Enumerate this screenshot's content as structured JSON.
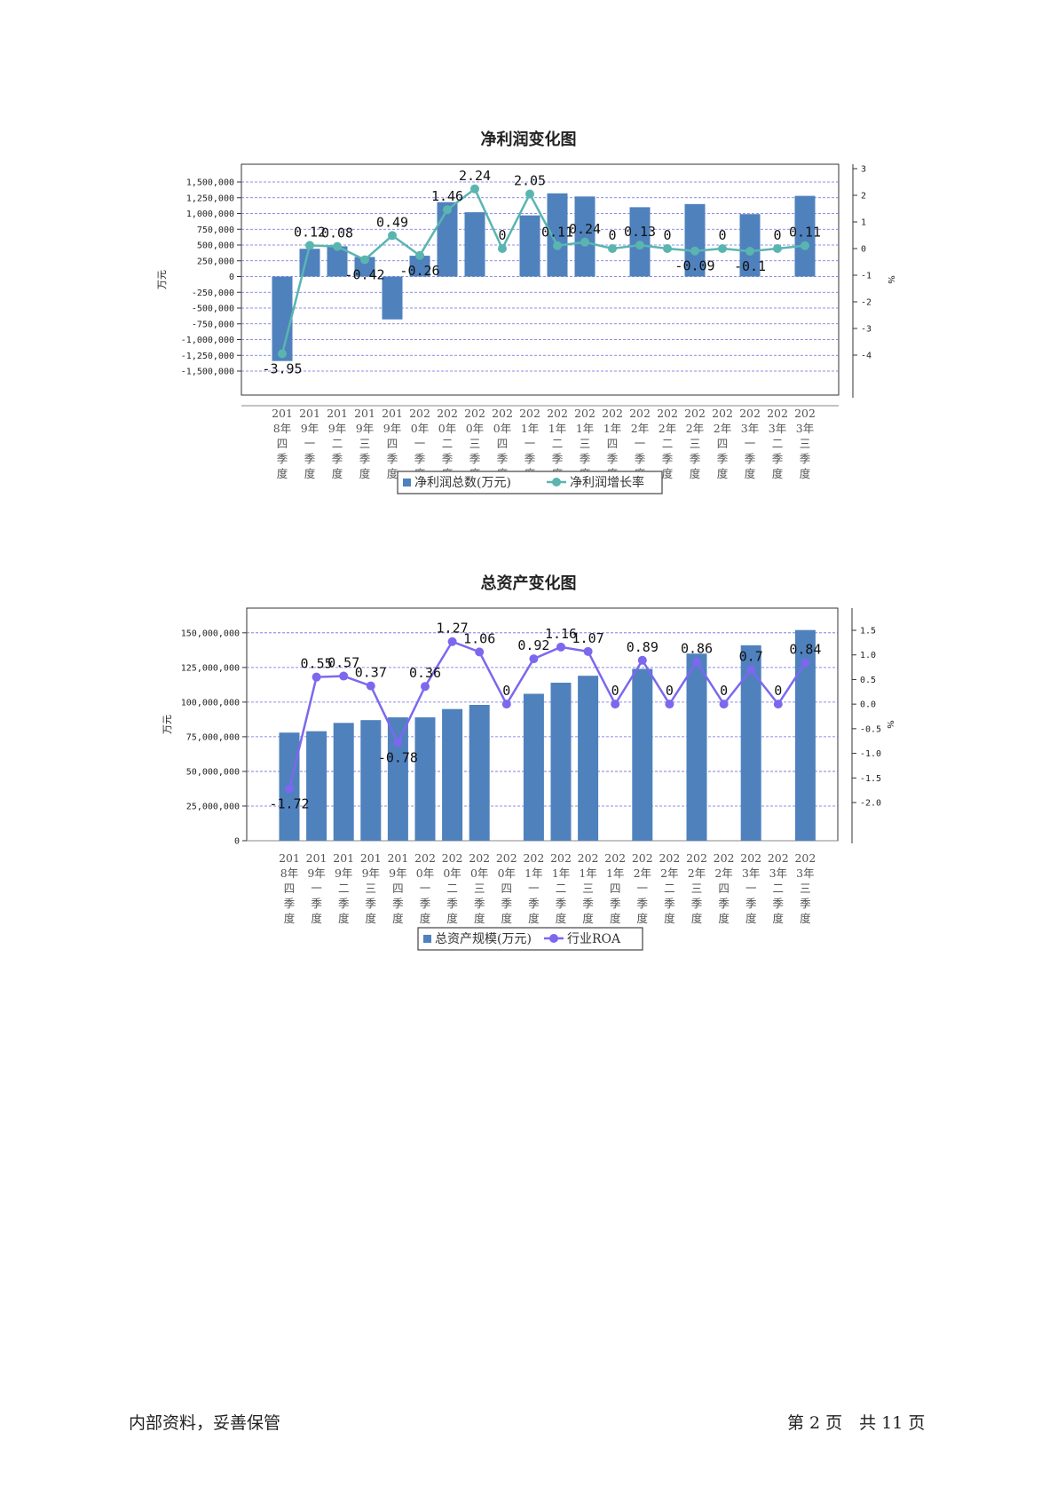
{
  "charts": [
    {
      "id": "netprofit",
      "title": "净利润变化图",
      "left_axis_unit": "万元",
      "right_axis_unit": "%",
      "bar_color": "#4f81bd",
      "line_color": "#5ab5b0",
      "left_ticks": [
        "1,500,000",
        "1,250,000",
        "1,000,000",
        "750,000",
        "500,000",
        "250,000",
        "0",
        "-250,000",
        "-500,000",
        "-750,000",
        "-1,000,000",
        "-1,250,000",
        "-1,500,000"
      ],
      "right_ticks": [
        "3",
        "2",
        "1",
        "0",
        "-1",
        "-2",
        "-3",
        "-4"
      ],
      "legend": {
        "bar": "净利润总数(万元)",
        "line": "净利润增长率"
      },
      "data_labels": [
        "-3.95",
        "0.12",
        "0.08",
        "-0.42",
        "0.49",
        "-0.26",
        "1.46",
        "2.24",
        "0",
        "2.05",
        "0.11",
        "0.24",
        "0",
        "0.13",
        "0",
        "-0.09",
        "0",
        "-0.1",
        "0",
        "0.11"
      ]
    },
    {
      "id": "assets",
      "title": "总资产变化图",
      "left_axis_unit": "万元",
      "right_axis_unit": "%",
      "bar_color": "#4f81bd",
      "line_color": "#7b68ee",
      "left_ticks": [
        "150,000,000",
        "125,000,000",
        "100,000,000",
        "75,000,000",
        "50,000,000",
        "25,000,000",
        "0"
      ],
      "right_ticks": [
        "1.5",
        "1.0",
        "0.5",
        "0.0",
        "-0.5",
        "-1.0",
        "-1.5",
        "-2.0"
      ],
      "legend": {
        "bar": "总资产规模(万元)",
        "line": "行业ROA"
      },
      "data_labels": [
        "-1.72",
        "0.55",
        "0.57",
        "0.37",
        "-0.78",
        "0.36",
        "1.27",
        "1.06",
        "0",
        "0.92",
        "1.16",
        "1.07",
        "0",
        "0.89",
        "0",
        "0.86",
        "0",
        "0.7",
        "0",
        "0.84"
      ]
    }
  ],
  "chart_data": [
    {
      "type": "bar",
      "title": "净利润变化图",
      "categories": [
        "2018年四季度",
        "2019年一季度",
        "2019年二季度",
        "2019年三季度",
        "2019年四季度",
        "2020年一季度",
        "2020年二季度",
        "2020年三季度",
        "2020年四季度",
        "2021年一季度",
        "2021年二季度",
        "2021年三季度",
        "2021年四季度",
        "2022年一季度",
        "2022年二季度",
        "2022年三季度",
        "2022年四季度",
        "2023年一季度",
        "2023年二季度",
        "2023年三季度"
      ],
      "ylabel": "万元",
      "y2label": "%",
      "ylim": [
        -1500000,
        1500000
      ],
      "y2lim": [
        -4,
        3
      ],
      "grid": true,
      "legend": "bottom",
      "series": [
        {
          "name": "净利润总数(万元)",
          "type": "bar",
          "axis": "left",
          "values": [
            -1340000,
            440000,
            480000,
            310000,
            -680000,
            330000,
            1180000,
            1020000,
            null,
            970000,
            1320000,
            1270000,
            null,
            1100000,
            null,
            1150000,
            null,
            990000,
            null,
            1280000
          ]
        },
        {
          "name": "净利润增长率",
          "type": "line",
          "axis": "right",
          "values": [
            -3.95,
            0.12,
            0.08,
            -0.42,
            0.49,
            -0.26,
            1.46,
            2.24,
            0,
            2.05,
            0.11,
            0.24,
            0,
            0.13,
            0,
            -0.09,
            0,
            -0.1,
            0,
            0.11
          ]
        }
      ]
    },
    {
      "type": "bar",
      "title": "总资产变化图",
      "categories": [
        "2018年四季度",
        "2019年一季度",
        "2019年二季度",
        "2019年三季度",
        "2019年四季度",
        "2020年一季度",
        "2020年二季度",
        "2020年三季度",
        "2020年四季度",
        "2021年一季度",
        "2021年二季度",
        "2021年三季度",
        "2021年四季度",
        "2022年一季度",
        "2022年二季度",
        "2022年三季度",
        "2022年四季度",
        "2023年一季度",
        "2023年二季度",
        "2023年三季度"
      ],
      "ylabel": "万元",
      "y2label": "%",
      "ylim": [
        0,
        155000000
      ],
      "y2lim": [
        -2.1,
        1.5
      ],
      "grid": true,
      "legend": "bottom",
      "series": [
        {
          "name": "总资产规模(万元)",
          "type": "bar",
          "axis": "left",
          "values": [
            78000000,
            79000000,
            85000000,
            87000000,
            89000000,
            89000000,
            95000000,
            98000000,
            null,
            106000000,
            114000000,
            119000000,
            null,
            124000000,
            null,
            135000000,
            null,
            141000000,
            null,
            152000000
          ]
        },
        {
          "name": "行业ROA",
          "type": "line",
          "axis": "right",
          "values": [
            -1.72,
            0.55,
            0.57,
            0.37,
            -0.78,
            0.36,
            1.27,
            1.06,
            0,
            0.92,
            1.16,
            1.07,
            0,
            0.89,
            0,
            0.86,
            0,
            0.7,
            0,
            0.84
          ]
        }
      ]
    }
  ],
  "footer": {
    "left": "内部资料，妥善保管",
    "right": "第 2 页　共 11 页"
  }
}
